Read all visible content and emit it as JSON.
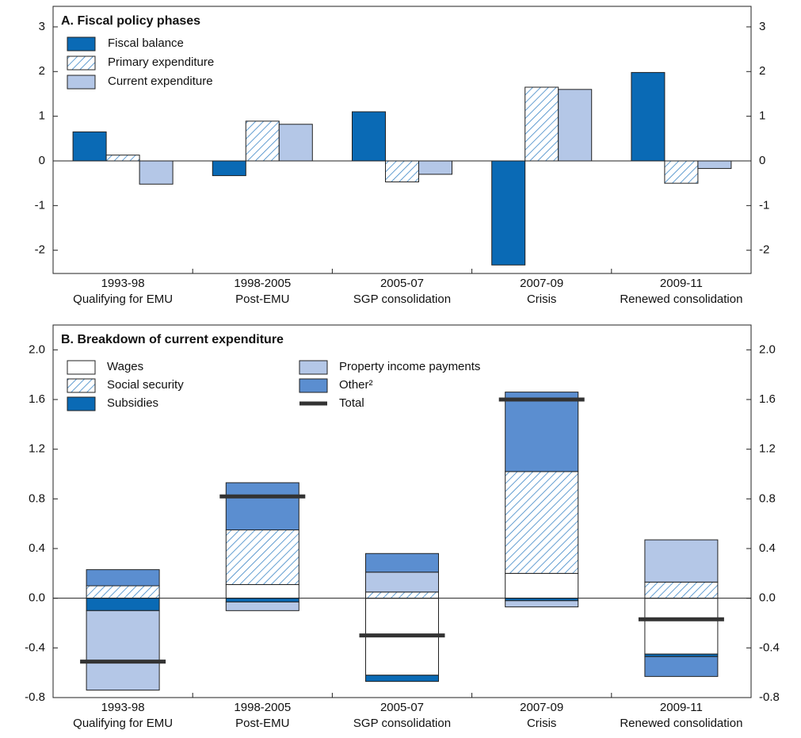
{
  "chart_data": [
    {
      "type": "bar",
      "title": "A. Fiscal policy phases",
      "categories": [
        [
          "1993-98",
          "Qualifying for EMU"
        ],
        [
          "1998-2005",
          "Post-EMU"
        ],
        [
          "2005-07",
          "SGP consolidation"
        ],
        [
          "2007-09",
          "Crisis"
        ],
        [
          "2009-11",
          "Renewed consolidation"
        ]
      ],
      "series": [
        {
          "name": "Fiscal balance",
          "color": "#0a6ab5",
          "values": [
            0.65,
            -0.33,
            1.1,
            -2.33,
            1.98
          ]
        },
        {
          "name": "Primary expenditure",
          "color": "#3d86c6",
          "hatch": true,
          "values": [
            0.13,
            0.89,
            -0.47,
            1.65,
            -0.5
          ]
        },
        {
          "name": "Current expenditure",
          "color": "#b4c7e7",
          "values": [
            -0.52,
            0.82,
            -0.3,
            1.6,
            -0.17
          ]
        }
      ],
      "ylim": [
        -2.52,
        3.46
      ],
      "yticks": [
        -2,
        -1,
        0,
        1,
        2,
        3
      ]
    },
    {
      "type": "stacked-bar",
      "title": "B. Breakdown of current expenditure",
      "categories": [
        [
          "1993-98",
          "Qualifying for EMU"
        ],
        [
          "1998-2005",
          "Post-EMU"
        ],
        [
          "2005-07",
          "SGP consolidation"
        ],
        [
          "2007-09",
          "Crisis"
        ],
        [
          "2009-11",
          "Renewed consolidation"
        ]
      ],
      "series": [
        {
          "name": "Wages",
          "color": "#ffffff",
          "values": [
            0,
            0.11,
            -0.62,
            0.2,
            -0.45
          ]
        },
        {
          "name": "Social security",
          "color": "#3d86c6",
          "hatch": true,
          "values": [
            0.1,
            0.44,
            0.05,
            0.82,
            0.13
          ]
        },
        {
          "name": "Subsidies",
          "color": "#0a6ab5",
          "values": [
            -0.1,
            -0.03,
            -0.05,
            -0.02,
            -0.02
          ]
        },
        {
          "name": "Property income payments",
          "color": "#b4c7e7",
          "values": [
            -0.64,
            -0.07,
            0.16,
            -0.05,
            0.34
          ]
        },
        {
          "name": "Other²",
          "color": "#5b8ed0",
          "values": [
            0.13,
            0.38,
            0.15,
            0.64,
            -0.16
          ]
        }
      ],
      "total": {
        "name": "Total",
        "color": "#333333",
        "values": [
          -0.51,
          0.82,
          -0.3,
          1.6,
          -0.17
        ]
      },
      "ylim": [
        -0.8,
        2.2
      ],
      "yticks": [
        -0.8,
        -0.4,
        {
          "value": 0,
          "label": "0.0"
        },
        0.4,
        0.8,
        1.2,
        1.6,
        {
          "value": 2,
          "label": "2.0"
        }
      ]
    }
  ]
}
